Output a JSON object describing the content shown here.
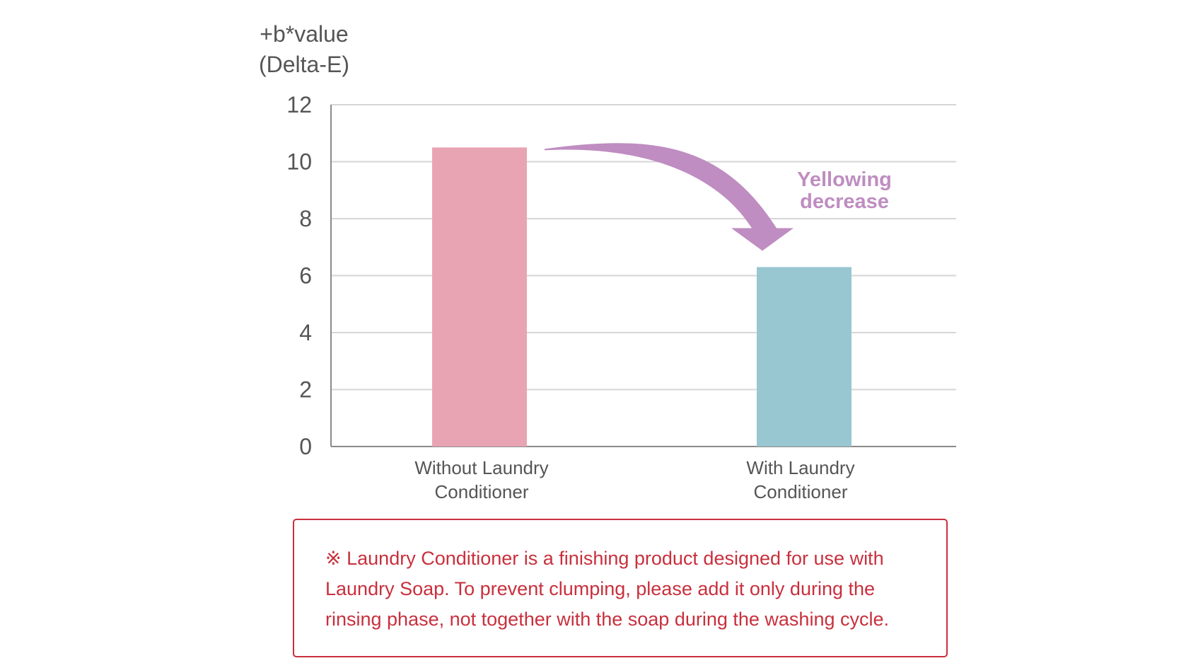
{
  "chart_data": {
    "type": "bar",
    "ylabel": [
      "+b*value",
      "(Delta-E)"
    ],
    "ylim": [
      0,
      12
    ],
    "yticks": [
      0,
      2,
      4,
      6,
      8,
      10,
      12
    ],
    "grid": true,
    "categories": [
      [
        "Without Laundry",
        "Conditioner"
      ],
      [
        "With Laundry",
        "Conditioner"
      ]
    ],
    "values": [
      10.5,
      6.3
    ],
    "bar_colors": [
      "#e9a4b3",
      "#98c6d1"
    ],
    "annotation": {
      "lines": [
        "Yellowing",
        "decrease"
      ],
      "color": "#bf8dc1"
    }
  },
  "note": {
    "lines": [
      "※ Laundry Conditioner is a finishing product designed for use with",
      "Laundry Soap. To prevent clumping, please add it only during the",
      "rinsing phase, not together with the soap during the washing cycle."
    ],
    "color": "#c8303d"
  }
}
